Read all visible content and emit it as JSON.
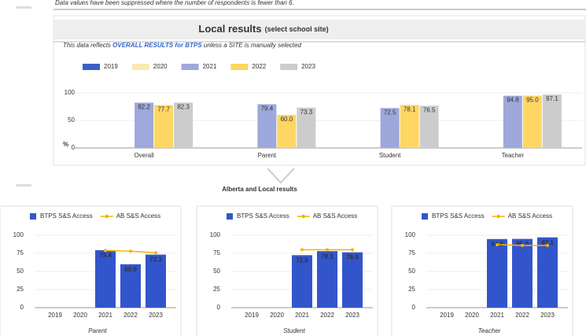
{
  "notice": "Data values have been suppressed where the number of respondents is fewer than 6.",
  "section_title": "Alberta and Local results",
  "chart_data": [
    {
      "type": "bar",
      "title": "Local results",
      "subtitle": "(select school site)",
      "note": [
        "This data reflects ",
        "OVERALL RESULTS for BTPS",
        " unless a SITE is manually selected"
      ],
      "ylabel": "%",
      "categories": [
        "Overall",
        "Parent",
        "Student",
        "Teacher"
      ],
      "series": [
        {
          "name": "2019",
          "color": "#3c5fc6",
          "values": [
            null,
            null,
            null,
            null
          ]
        },
        {
          "name": "2020",
          "color": "#fce8b2",
          "values": [
            null,
            null,
            null,
            null
          ]
        },
        {
          "name": "2021",
          "color": "#9fa8da",
          "values": [
            82.2,
            79.4,
            72.5,
            94.8
          ],
          "value_labels": [
            "82.2",
            "79.4",
            "72.5",
            "94.8"
          ]
        },
        {
          "name": "2022",
          "color": "#fdd663",
          "values": [
            77.7,
            60,
            78.1,
            95
          ],
          "value_labels": [
            "77.7",
            "60.0",
            "78.1",
            "95.0"
          ]
        },
        {
          "name": "2023",
          "color": "#cccccc",
          "values": [
            82.3,
            73.3,
            76.5,
            97.1
          ],
          "value_labels": [
            "82.3",
            "73.3",
            "76.5",
            "97.1"
          ]
        }
      ],
      "ylim": [
        0,
        100
      ],
      "yticks": [
        0,
        50,
        100
      ],
      "grid": true
    },
    {
      "type": "combo",
      "xlabel": "Parent",
      "categories": [
        "2019",
        "2020",
        "2021",
        "2022",
        "2023"
      ],
      "series": [
        {
          "name": "BTPS S&S Access",
          "type": "bar",
          "color": "#3355cc",
          "values": [
            null,
            null,
            79.4,
            60,
            73.3
          ],
          "value_labels": [
            null,
            null,
            "79.4",
            "60.0",
            "73.3"
          ]
        },
        {
          "name": "AB S&S Access",
          "type": "line",
          "color": "#f4b400",
          "values": [
            null,
            null,
            79,
            78,
            76
          ]
        }
      ],
      "ylim": [
        0,
        100
      ],
      "yticks": [
        0,
        25,
        50,
        75,
        100
      ],
      "grid": true
    },
    {
      "type": "combo",
      "xlabel": "Student",
      "categories": [
        "2019",
        "2020",
        "2021",
        "2022",
        "2023"
      ],
      "series": [
        {
          "name": "BTPS S&S Access",
          "type": "bar",
          "color": "#3355cc",
          "values": [
            null,
            null,
            72.5,
            78.1,
            76.5
          ],
          "value_labels": [
            null,
            null,
            "72.5",
            "78.1",
            "76.5"
          ]
        },
        {
          "name": "AB S&S Access",
          "type": "line",
          "color": "#f4b400",
          "values": [
            null,
            null,
            80,
            80,
            80
          ]
        }
      ],
      "ylim": [
        0,
        100
      ],
      "yticks": [
        0,
        25,
        50,
        75,
        100
      ],
      "grid": true
    },
    {
      "type": "combo",
      "xlabel": "Teacher",
      "categories": [
        "2019",
        "2020",
        "2021",
        "2022",
        "2023"
      ],
      "series": [
        {
          "name": "BTPS S&S Access",
          "type": "bar",
          "color": "#3355cc",
          "values": [
            null,
            null,
            94.8,
            95,
            97.1
          ],
          "value_labels": [
            null,
            null,
            "94.8",
            "95.0",
            "97.1"
          ]
        },
        {
          "name": "AB S&S Access",
          "type": "line",
          "color": "#f4b400",
          "values": [
            null,
            null,
            87,
            86,
            86
          ]
        }
      ],
      "ylim": [
        0,
        100
      ],
      "yticks": [
        0,
        25,
        50,
        75,
        100
      ],
      "grid": true
    }
  ]
}
